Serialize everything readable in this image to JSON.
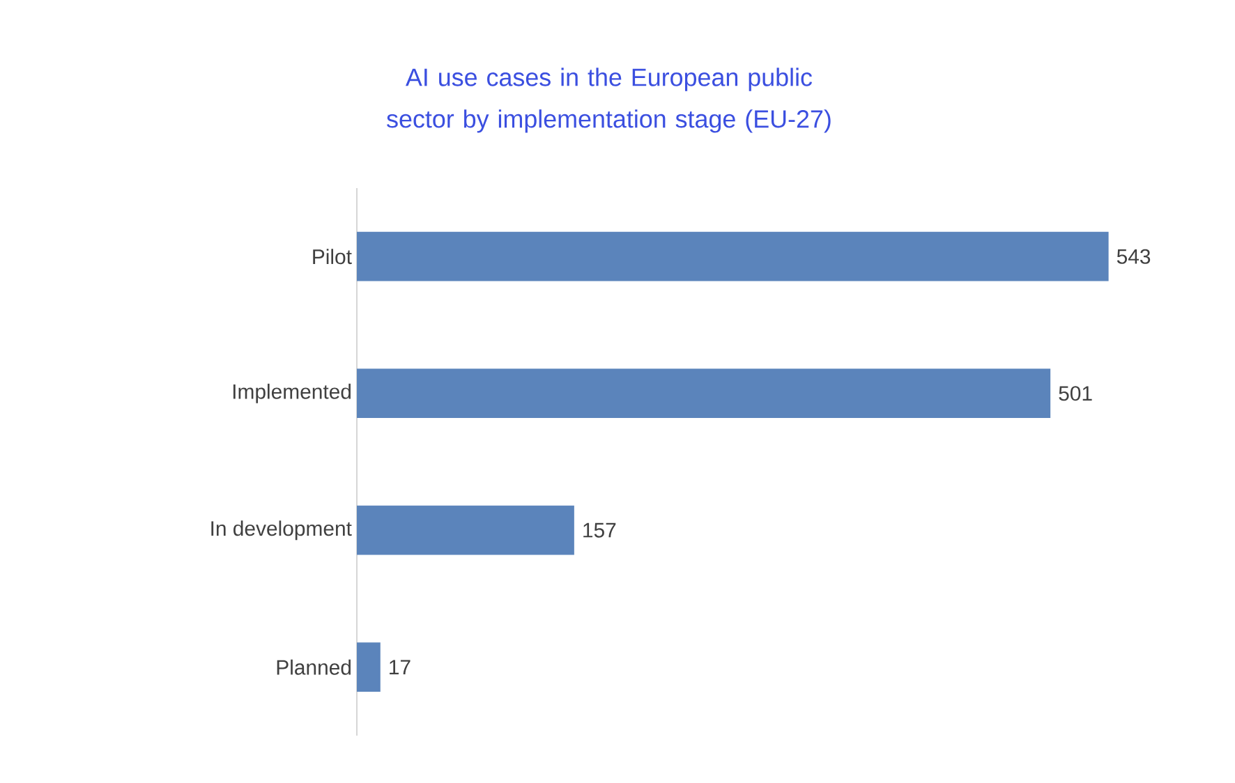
{
  "chart_data": {
    "type": "bar",
    "orientation": "horizontal",
    "title": "AI use cases in the European public sector by implementation stage (EU-27)",
    "categories": [
      "Pilot",
      "Implemented",
      "In development",
      "Planned"
    ],
    "values": [
      543,
      501,
      157,
      17
    ],
    "color": "#5b84bb",
    "data_labels": true
  }
}
